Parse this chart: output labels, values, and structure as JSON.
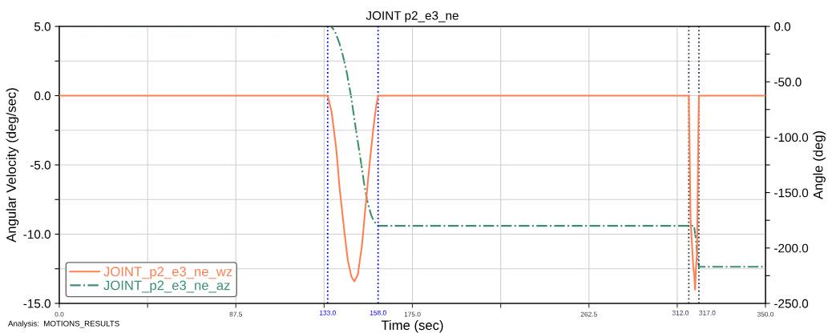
{
  "chart_data": {
    "type": "line",
    "title": "JOINT p2_e3_ne",
    "xlabel": "Time (sec)",
    "ylabel": "Angular Velocity (deg/sec)",
    "y2label": "Angle (deg)",
    "annotations": [
      "Analysis:  MOTIONS_RESULTS"
    ],
    "xlim": [
      0,
      350
    ],
    "ylim": [
      -15,
      5
    ],
    "y2lim": [
      -250,
      0
    ],
    "xticks": [
      {
        "value": 0,
        "label": "0.0"
      },
      {
        "value": 43.75,
        "label": null
      },
      {
        "value": 87.5,
        "label": "87.5"
      },
      {
        "value": 131.25,
        "label": null
      },
      {
        "value": 175,
        "label": "175.0"
      },
      {
        "value": 218.75,
        "label": null
      },
      {
        "value": 262.5,
        "label": "262.5"
      },
      {
        "value": 306.25,
        "label": null
      },
      {
        "value": 350,
        "label": "350.0"
      }
    ],
    "yticks": [
      {
        "value": 5,
        "label": "5.0"
      },
      {
        "value": 2.5,
        "label": null
      },
      {
        "value": 0,
        "label": "0.0"
      },
      {
        "value": -2.5,
        "label": null
      },
      {
        "value": -5,
        "label": "-5.0"
      },
      {
        "value": -7.5,
        "label": null
      },
      {
        "value": -10,
        "label": "-10.0"
      },
      {
        "value": -12.5,
        "label": null
      },
      {
        "value": -15,
        "label": "-15.0"
      }
    ],
    "y2ticks": [
      {
        "value": 0,
        "label": "0.0"
      },
      {
        "value": -25,
        "label": null
      },
      {
        "value": -50,
        "label": "-50.0"
      },
      {
        "value": -75,
        "label": null
      },
      {
        "value": -100,
        "label": "-100.0"
      },
      {
        "value": -125,
        "label": null
      },
      {
        "value": -150,
        "label": "-150.0"
      },
      {
        "value": -175,
        "label": null
      },
      {
        "value": -200,
        "label": "-200.0"
      },
      {
        "value": -225,
        "label": null
      },
      {
        "value": -250,
        "label": "-250.0"
      }
    ],
    "grid": true,
    "legend": "bottom left",
    "marker": "none",
    "ref_lines": [
      {
        "axis": "x",
        "value": 133,
        "label": "133.0",
        "color": "#0000ff",
        "line_style": "dotted"
      },
      {
        "axis": "x",
        "value": 158,
        "label": "158.0",
        "color": "#0000ff",
        "line_style": "dotted"
      },
      {
        "axis": "x",
        "value": 312,
        "label": "312.0",
        "color": "#2f3450",
        "line_style": "dotted"
      },
      {
        "axis": "x",
        "value": 317,
        "label": "317.0",
        "color": "#2f3450",
        "line_style": "dotted"
      }
    ],
    "series": [
      {
        "name": "JOINT_p2_e3_ne_wz",
        "color": "#ff7f50",
        "line_style": "solid",
        "x": [
          0,
          133,
          135,
          137.3,
          139,
          141.2,
          143,
          144.8,
          146.3,
          148,
          150,
          152.1,
          154,
          155.7,
          157,
          158,
          312,
          312.9,
          313.6,
          314.2,
          314.7,
          315.1,
          315.6,
          316.1,
          316.6,
          317,
          350
        ],
        "values": [
          0,
          0,
          -1.2,
          -3.9,
          -6.8,
          -9.7,
          -11.9,
          -13.1,
          -13.4,
          -12.9,
          -10.8,
          -7.5,
          -4.6,
          -2.3,
          -0.8,
          0,
          0,
          -9.1,
          -10.8,
          -12.3,
          -13.0,
          -14.0,
          -12.3,
          -11.3,
          -4.2,
          0,
          0
        ]
      },
      {
        "name": "JOINT_p2_e3_ne_az",
        "color": "#3a8f73",
        "line_style": "dashdot",
        "axis": "y2",
        "x": [
          0,
          134.7,
          136.5,
          138.7,
          140.5,
          142.2,
          144.6,
          147,
          149.4,
          151,
          152.6,
          154.5,
          156,
          157.3,
          158,
          314.6,
          315.5,
          316.3,
          317,
          350
        ],
        "values": [
          0,
          0,
          -4,
          -14.5,
          -26,
          -39,
          -63,
          -93,
          -121,
          -141,
          -157,
          -170,
          -176,
          -178.5,
          -180,
          -180,
          -192,
          -208,
          -217,
          -217
        ]
      }
    ]
  }
}
